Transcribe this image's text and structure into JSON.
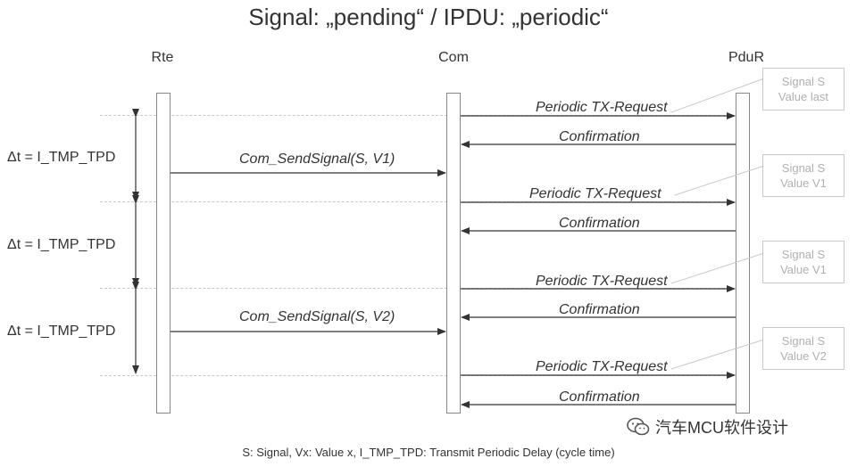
{
  "title": "Signal: „pending“ / IPDU: „periodic“",
  "actors": {
    "rte": "Rte",
    "com": "Com",
    "pdur": "PduR"
  },
  "intervals": [
    {
      "label": "Δt = I_TMP_TPD"
    },
    {
      "label": "Δt = I_TMP_TPD"
    },
    {
      "label": "Δt = I_TMP_TPD"
    }
  ],
  "messages": {
    "periodic_1": "Periodic TX-Request",
    "confirm_1": "Confirmation",
    "send_1": "Com_SendSignal(S, V1)",
    "periodic_2": "Periodic TX-Request",
    "confirm_2": "Confirmation",
    "periodic_3": "Periodic TX-Request",
    "confirm_3": "Confirmation",
    "send_2": "Com_SendSignal(S, V2)",
    "periodic_4": "Periodic TX-Request",
    "confirm_4": "Confirmation"
  },
  "notes": [
    {
      "line1": "Signal S",
      "line2": "Value last"
    },
    {
      "line1": "Signal S",
      "line2": "Value V1"
    },
    {
      "line1": "Signal S",
      "line2": "Value V1"
    },
    {
      "line1": "Signal S",
      "line2": "Value V2"
    }
  ],
  "footer": "S: Signal,  Vx: Value x,  I_TMP_TPD: Transmit Periodic Delay (cycle time)",
  "watermark": "汽车MCU软件设计",
  "colors": {
    "line": "#333333",
    "note_border": "#c8c8c8",
    "note_text": "#b0b0b0"
  }
}
